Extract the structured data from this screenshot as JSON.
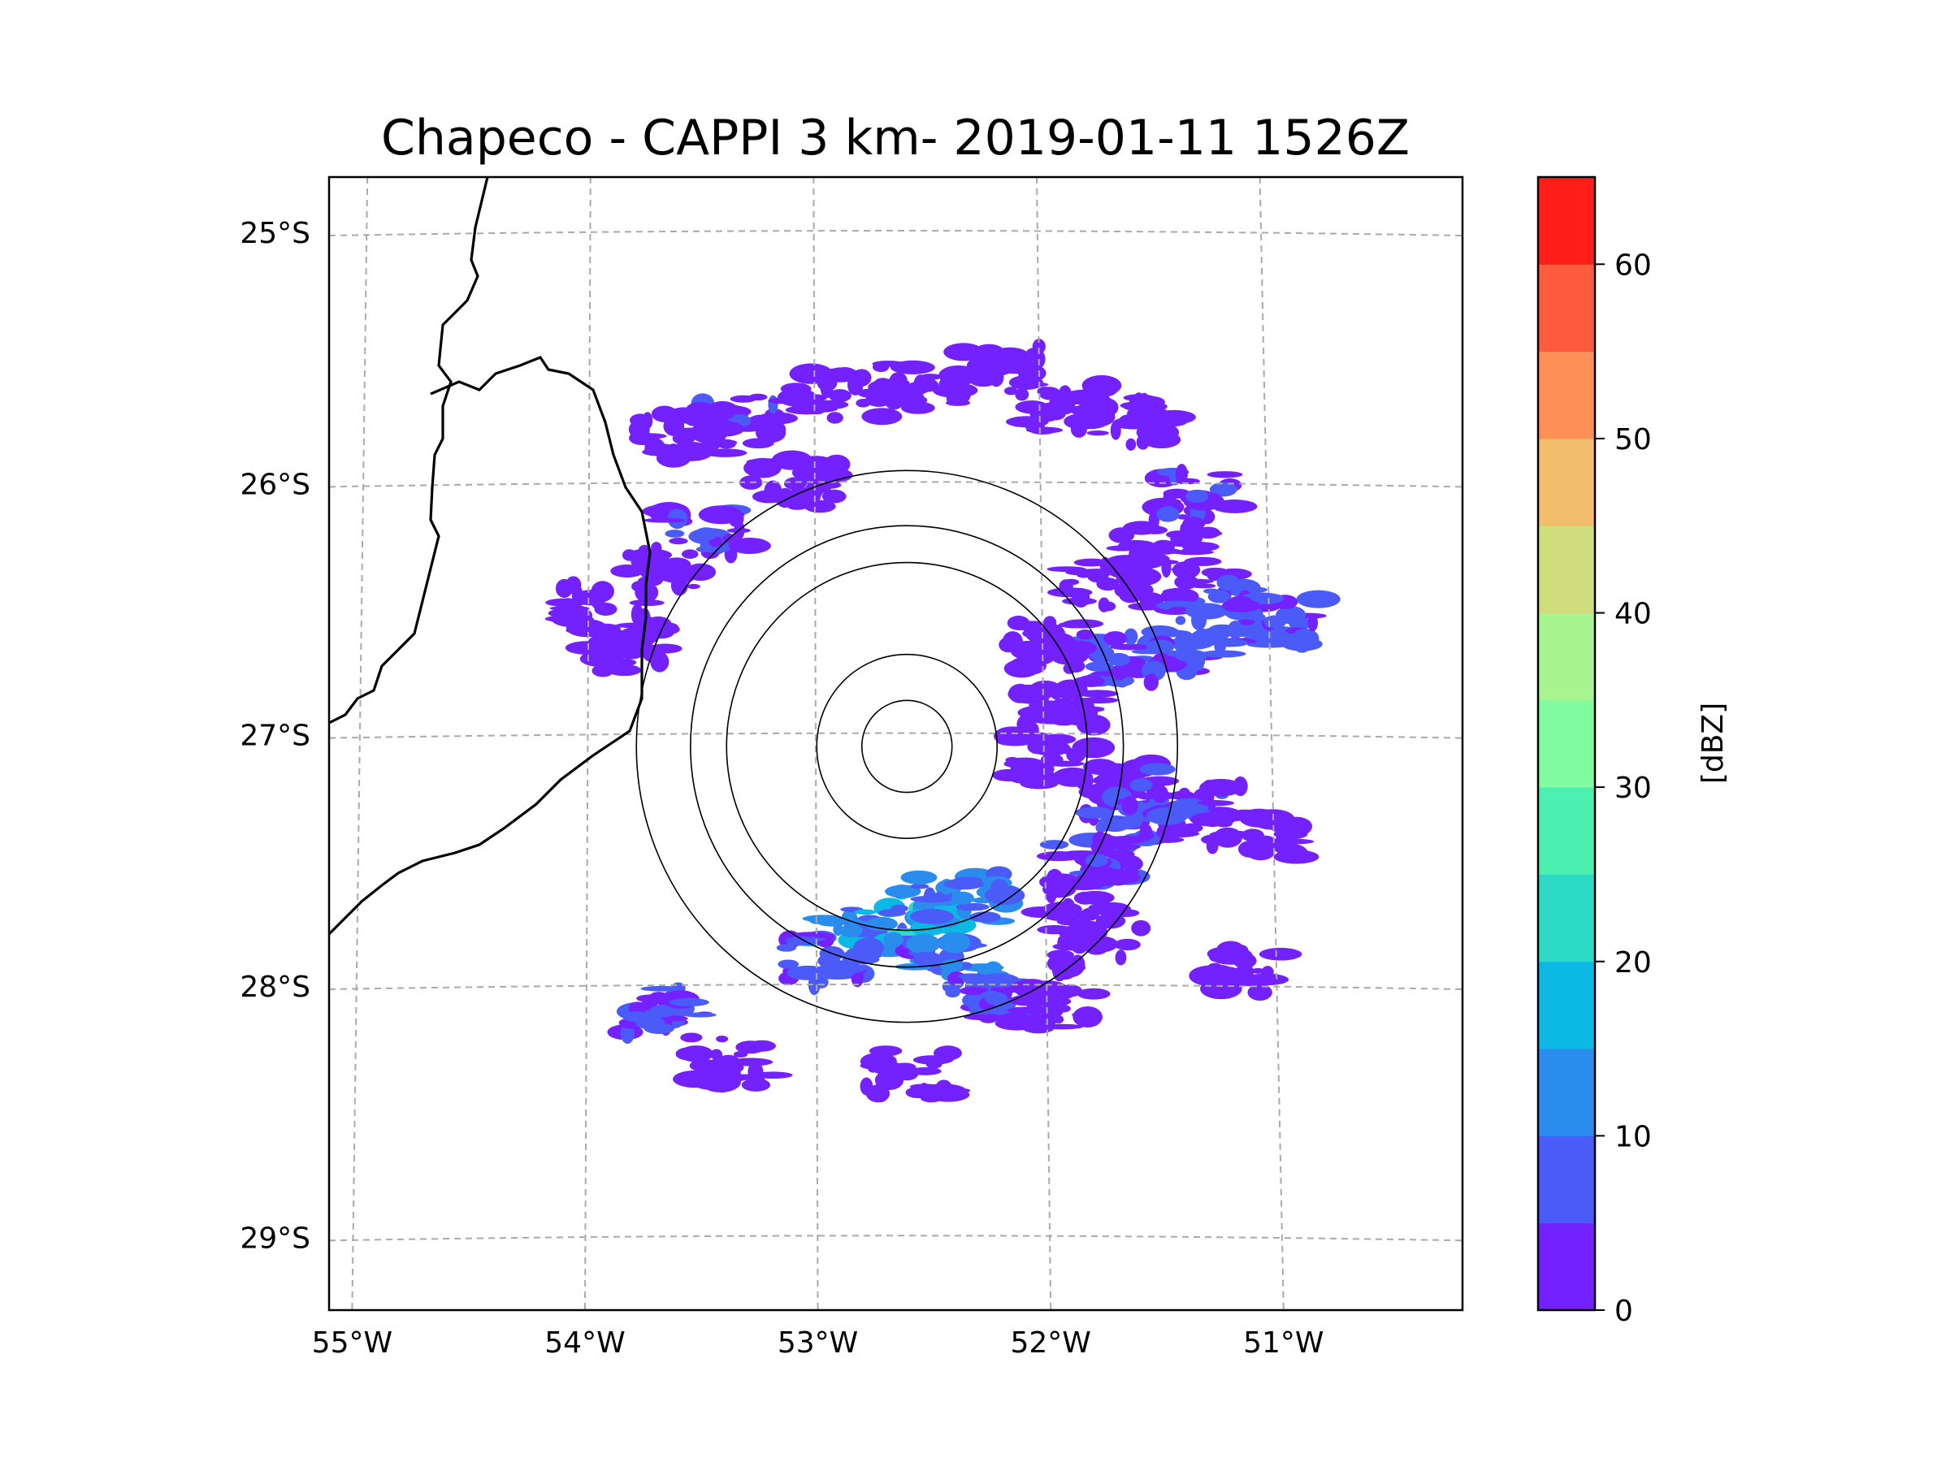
{
  "chart_data": {
    "type": "heatmap",
    "title": "Chapeco - CAPPI 3 km- 2019-01-11 1526Z",
    "units": "[dBZ]",
    "colorbar": {
      "range": [
        0,
        65
      ],
      "step": 5,
      "tick_values": [
        0,
        10,
        20,
        30,
        40,
        50,
        60
      ],
      "tick_labels": [
        "0",
        "10",
        "20",
        "30",
        "40",
        "50",
        "60"
      ],
      "colors": [
        "#7321ff",
        "#4b5bf8",
        "#2a8ced",
        "#0cb8e4",
        "#2cdac5",
        "#4cf0b1",
        "#81fca1",
        "#a8f58f",
        "#d0dd7d",
        "#f2bd6d",
        "#fe8f57",
        "#fe5a3d",
        "#ff1e1a"
      ]
    },
    "longitude": {
      "range": [
        -55.19,
        -50.11
      ],
      "ticks": [
        -55,
        -54,
        -53,
        -52,
        -51
      ],
      "tick_labels": [
        "55°W",
        "54°W",
        "53°W",
        "52°W",
        "51°W"
      ]
    },
    "latitude": {
      "range": [
        -29.29,
        -24.78
      ],
      "ticks": [
        -25,
        -26,
        -27,
        -28,
        -29
      ],
      "tick_labels": [
        "25°S",
        "26°S",
        "27°S",
        "28°S",
        "29°S"
      ]
    },
    "radar_center": {
      "lon": -52.6,
      "lat": -27.03
    },
    "range_rings_km": [
      50,
      100,
      200,
      240,
      300
    ],
    "echo_cells": [
      {
        "lon": -52.9,
        "lat": -25.65,
        "dbz": 4
      },
      {
        "lon": -52.55,
        "lat": -25.62,
        "dbz": 3
      },
      {
        "lon": -53.35,
        "lat": -25.75,
        "dbz": 5
      },
      {
        "lon": -53.6,
        "lat": -25.82,
        "dbz": 4
      },
      {
        "lon": -52.2,
        "lat": -25.55,
        "dbz": 3
      },
      {
        "lon": -51.9,
        "lat": -25.7,
        "dbz": 3
      },
      {
        "lon": -51.6,
        "lat": -25.75,
        "dbz": 3
      },
      {
        "lon": -53.1,
        "lat": -26.0,
        "dbz": 4
      },
      {
        "lon": -53.5,
        "lat": -26.2,
        "dbz": 5
      },
      {
        "lon": -53.7,
        "lat": -26.35,
        "dbz": 4
      },
      {
        "lon": -51.3,
        "lat": -26.05,
        "dbz": 5
      },
      {
        "lon": -51.45,
        "lat": -26.25,
        "dbz": 4
      },
      {
        "lon": -51.7,
        "lat": -26.4,
        "dbz": 4
      },
      {
        "lon": -51.2,
        "lat": -26.45,
        "dbz": 6
      },
      {
        "lon": -50.95,
        "lat": -26.55,
        "dbz": 7
      },
      {
        "lon": -51.35,
        "lat": -26.65,
        "dbz": 8
      },
      {
        "lon": -51.65,
        "lat": -26.7,
        "dbz": 6
      },
      {
        "lon": -51.9,
        "lat": -26.9,
        "dbz": 4
      },
      {
        "lon": -51.95,
        "lat": -27.1,
        "dbz": 3
      },
      {
        "lon": -51.55,
        "lat": -27.2,
        "dbz": 5
      },
      {
        "lon": -51.6,
        "lat": -27.35,
        "dbz": 6
      },
      {
        "lon": -51.3,
        "lat": -27.3,
        "dbz": 5
      },
      {
        "lon": -51.75,
        "lat": -27.5,
        "dbz": 5
      },
      {
        "lon": -51.8,
        "lat": -27.65,
        "dbz": 4
      },
      {
        "lon": -51.05,
        "lat": -27.4,
        "dbz": 3
      },
      {
        "lon": -52.85,
        "lat": -27.78,
        "dbz": 14
      },
      {
        "lon": -52.55,
        "lat": -27.72,
        "dbz": 18
      },
      {
        "lon": -52.35,
        "lat": -27.65,
        "dbz": 12
      },
      {
        "lon": -52.95,
        "lat": -27.9,
        "dbz": 8
      },
      {
        "lon": -52.4,
        "lat": -27.92,
        "dbz": 10
      },
      {
        "lon": -52.2,
        "lat": -28.05,
        "dbz": 7
      },
      {
        "lon": -51.95,
        "lat": -28.1,
        "dbz": 4
      },
      {
        "lon": -53.7,
        "lat": -28.1,
        "dbz": 6
      },
      {
        "lon": -53.4,
        "lat": -28.3,
        "dbz": 4
      },
      {
        "lon": -52.6,
        "lat": -28.35,
        "dbz": 3
      },
      {
        "lon": -53.85,
        "lat": -26.65,
        "dbz": 4
      },
      {
        "lon": -53.95,
        "lat": -26.5,
        "dbz": 3
      },
      {
        "lon": -52.0,
        "lat": -26.65,
        "dbz": 4
      },
      {
        "lon": -51.75,
        "lat": -27.85,
        "dbz": 4
      },
      {
        "lon": -51.1,
        "lat": -27.95,
        "dbz": 3
      }
    ]
  }
}
